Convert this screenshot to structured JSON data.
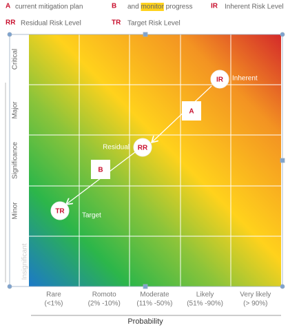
{
  "legend": [
    {
      "key": "A",
      "text": "current mitigation plan"
    },
    {
      "key": "B",
      "text": "and monitor progress",
      "highlight": "monitor"
    },
    {
      "key": "IR",
      "text": "Inherent Risk Level"
    },
    {
      "key": "RR",
      "text": "Residual Risk Level"
    },
    {
      "key": "TR",
      "text": "Target Risk Level"
    }
  ],
  "y_axis_title": "Significance",
  "rows": [
    "Critical",
    "Major",
    "Minor",
    "Insignificant"
  ],
  "x_axis_title": "Probability",
  "columns": [
    {
      "name": "Rare",
      "range": "(<1%)"
    },
    {
      "name": "Romoto",
      "range": "(2%  -10%)"
    },
    {
      "name": "Moderate",
      "range": "(11%  -50%)"
    },
    {
      "name": "Likely",
      "range": "(51%  -90%)"
    },
    {
      "name": "Very likely",
      "range": "(> 90%)"
    }
  ],
  "markers": [
    {
      "code": "IR",
      "label": "Inherent"
    },
    {
      "code": "RR",
      "label": "Residual"
    },
    {
      "code": "TR",
      "label": "Target"
    }
  ],
  "steps": [
    "A",
    "B"
  ]
}
